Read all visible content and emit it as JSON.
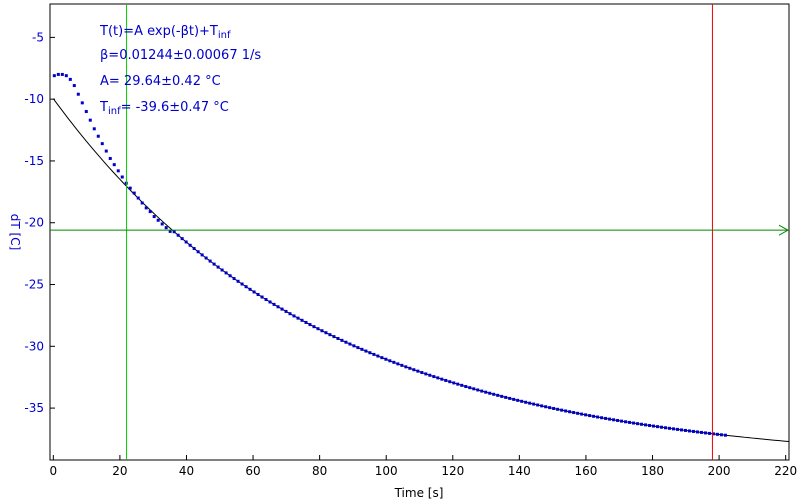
{
  "chart_data": {
    "type": "scatter",
    "title": "",
    "xlabel": "Time [s]",
    "ylabel": "dT [C]",
    "xlim": [
      -1,
      221
    ],
    "ylim": [
      -39.2,
      -2.3
    ],
    "x_ticks": [
      0,
      20,
      40,
      60,
      80,
      100,
      120,
      140,
      160,
      180,
      200,
      220
    ],
    "y_ticks": [
      -5,
      -10,
      -15,
      -20,
      -25,
      -30,
      -35
    ],
    "grid": false,
    "annotations": {
      "formula": "T(t)=A exp(-βt)+T",
      "formula_sub": "inf",
      "beta": "β=0.01244±0.00067 1/s",
      "amp": "A= 29.64±0.42 °C",
      "tinf_main": "T",
      "tinf_sub": "inf",
      "tinf_val": "= -39.6±0.47 °C"
    },
    "fit": {
      "A": 29.64,
      "beta": 0.01244,
      "Tinf": -39.6,
      "x_range": [
        0,
        221
      ]
    },
    "cursors": {
      "green_vertical_x": 22,
      "red_vertical_x": 198,
      "green_horizontal_y": -20.6
    },
    "series": [
      {
        "name": "",
        "color": "#0000cc",
        "points": [
          [
            0.3,
            -8.1
          ],
          [
            1.5,
            -8.0
          ],
          [
            2.7,
            -8.0
          ],
          [
            3.9,
            -8.1
          ],
          [
            5.1,
            -8.4
          ],
          [
            6.3,
            -8.9
          ],
          [
            7.5,
            -9.6
          ],
          [
            8.7,
            -10.3
          ],
          [
            9.9,
            -11.0
          ],
          [
            11.1,
            -11.7
          ],
          [
            12.3,
            -12.4
          ],
          [
            13.5,
            -13.0
          ],
          [
            14.7,
            -13.6
          ],
          [
            15.9,
            -14.2
          ],
          [
            17.1,
            -14.8
          ],
          [
            18.3,
            -15.3
          ],
          [
            19.5,
            -15.8
          ],
          [
            20.7,
            -16.3
          ],
          [
            21.9,
            -16.8
          ],
          [
            23.1,
            -17.2
          ],
          [
            24.3,
            -17.6
          ],
          [
            25.5,
            -18.0
          ],
          [
            26.7,
            -18.4
          ],
          [
            27.9,
            -18.8
          ],
          [
            29.1,
            -19.1
          ],
          [
            30.3,
            -19.5
          ],
          [
            31.5,
            -19.8
          ],
          [
            32.7,
            -20.1
          ],
          [
            33.9,
            -20.4
          ],
          [
            35.1,
            -20.7
          ]
        ]
      }
    ]
  }
}
